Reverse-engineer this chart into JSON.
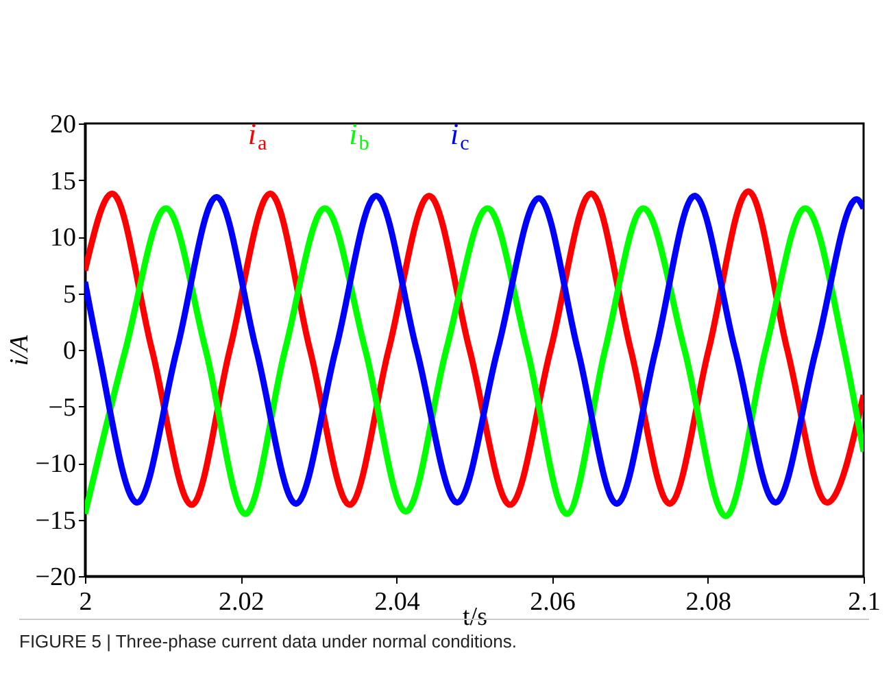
{
  "chart_data": {
    "type": "line",
    "xlabel": "t/s",
    "ylabel": "i/A",
    "annotations": [
      "FIGURE 5 | Three-phase current data under normal conditions."
    ],
    "xlim": [
      2,
      2.1
    ],
    "xticks": [
      2,
      2.02,
      2.04,
      2.06,
      2.08,
      2.1
    ],
    "ylim": [
      -20,
      20
    ],
    "yticks": [
      -20,
      -15,
      -10,
      -5,
      0,
      5,
      10,
      15,
      20
    ],
    "grid": false,
    "legend": false,
    "marker": "none",
    "line_style": "solid",
    "series": [
      {
        "name": "i$_{a}$",
        "color": "#ff0000",
        "x": [
          2.0,
          2.0035,
          2.0086,
          2.0137,
          2.0186,
          2.0238,
          2.0289,
          2.034,
          2.039,
          2.0442,
          2.0494,
          2.0546,
          2.0598,
          2.065,
          2.0701,
          2.0751,
          2.0801,
          2.0852,
          2.0902,
          2.0953,
          2.1
        ],
        "values": [
          7,
          13.8,
          0,
          -13.7,
          0,
          13.8,
          0,
          -13.7,
          0,
          13.6,
          0,
          -13.7,
          0,
          13.8,
          0,
          -13.6,
          0,
          14,
          0,
          -13.5,
          -4
        ]
      },
      {
        "name": "i$_{b}$",
        "color": "#00ff00",
        "x": [
          2.0,
          2.0052,
          2.0104,
          2.0155,
          2.0206,
          2.0257,
          2.0308,
          2.036,
          2.0412,
          2.0464,
          2.0517,
          2.0568,
          2.0619,
          2.0668,
          2.0717,
          2.077,
          2.0823,
          2.0874,
          2.0925,
          2.0975,
          2.1
        ],
        "values": [
          -14.5,
          0,
          12.5,
          0,
          -14.5,
          0,
          12.5,
          0,
          -14.3,
          0,
          12.5,
          0,
          -14.5,
          0,
          12.5,
          0,
          -14.7,
          0,
          12.5,
          0,
          -9
        ]
      },
      {
        "name": "i$_{c}$",
        "color": "#0000ff",
        "x": [
          2.0,
          2.0017,
          2.0067,
          2.0118,
          2.0169,
          2.022,
          2.0271,
          2.0322,
          2.0374,
          2.0426,
          2.0478,
          2.053,
          2.0583,
          2.0633,
          2.0683,
          2.0733,
          2.0783,
          2.0835,
          2.0887,
          2.0939,
          2.0991,
          2.1
        ],
        "values": [
          6,
          0,
          -13.5,
          0,
          13.5,
          0,
          -13.6,
          0,
          13.6,
          0,
          -13.5,
          0,
          13.4,
          0,
          -13.6,
          0,
          13.6,
          0,
          -13.5,
          0,
          13.3,
          12.5
        ]
      }
    ]
  }
}
